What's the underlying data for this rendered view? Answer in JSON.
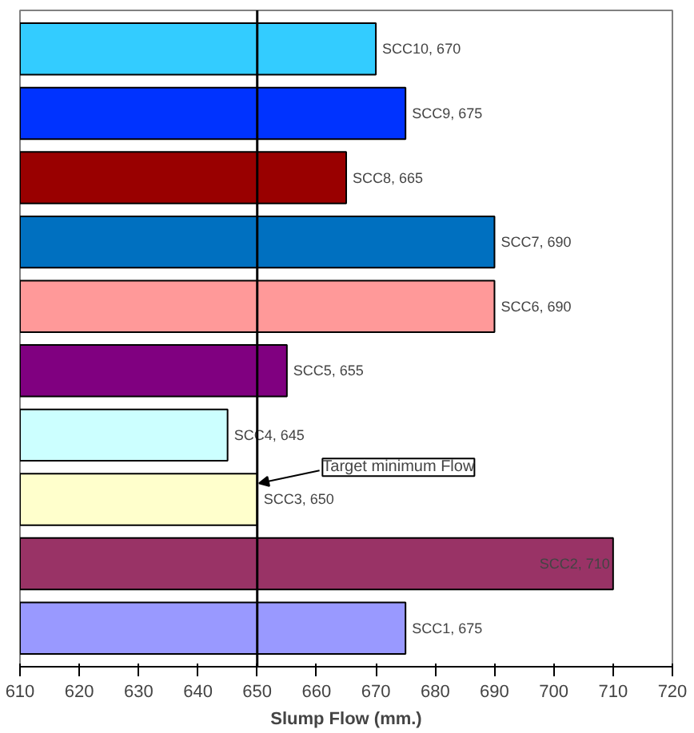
{
  "chart_data": {
    "type": "bar",
    "orientation": "horizontal",
    "xlabel": "Slump Flow (mm.)",
    "categories": [
      null,
      null,
      null,
      null,
      null,
      null,
      null,
      null,
      null,
      null
    ],
    "values": [
      670,
      675,
      665,
      690,
      690,
      655,
      645,
      650,
      710,
      675
    ],
    "value_labels": [
      "SCC10, 670",
      "SCC9, 675",
      "SCC8, 665",
      "SCC7, 690",
      "SCC6, 690",
      "SCC5, 655",
      "SCC4, 645",
      "SCC3, 650",
      "SCC2, 710",
      "SCC1, 675"
    ],
    "colors": [
      "#33ccff",
      "#0033ff",
      "#990000",
      "#0070c0",
      "#ff9999",
      "#800080",
      "#ccffff",
      "#ffffcc",
      "#993366",
      "#9999ff"
    ],
    "xlim": [
      610,
      720
    ],
    "xticks": [
      610,
      620,
      630,
      640,
      650,
      660,
      670,
      680,
      690,
      700,
      710,
      720
    ],
    "ref_lines": [
      {
        "axis": "x",
        "value": 650,
        "label": "Target minimum Flow",
        "color": "#000000"
      }
    ],
    "grid": false
  }
}
